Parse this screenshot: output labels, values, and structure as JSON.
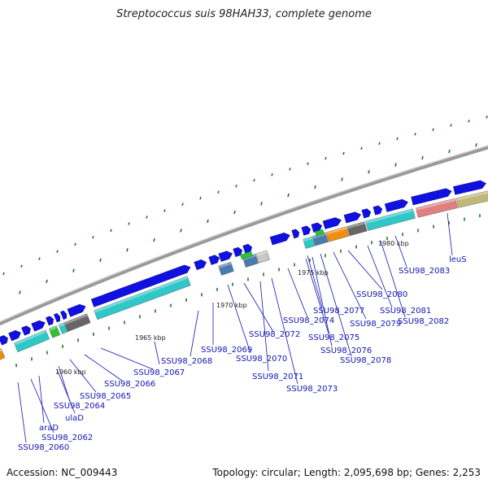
{
  "title": "Streptococcus suis 98HAH33, complete genome",
  "footer": {
    "accession": "Accession: NC_009443",
    "summary": "Topology: circular; Length: 2,095,698 bp; Genes: 2,253"
  },
  "scale_labels": [
    "1960 kbp",
    "1965 kbp",
    "1970 kbp",
    "1975 kbp",
    "1980 kbp"
  ],
  "gene_labels": [
    "SSU98_2060",
    "SSU98_2062",
    "araD",
    "ulaD",
    "SSU98_2064",
    "SSU98_2065",
    "SSU98_2066",
    "SSU98_2067",
    "SSU98_2068",
    "SSU98_2069",
    "SSU98_2070",
    "SSU98_2071",
    "SSU98_2072",
    "SSU98_2073",
    "SSU98_2074",
    "SSU98_2075",
    "SSU98_2076",
    "SSU98_2077",
    "SSU98_2078",
    "SSU98_2079",
    "SSU98_2080",
    "SSU98_2081",
    "SSU98_2082",
    "SSU98_2083",
    "leuS"
  ],
  "colors": {
    "gene_forward": "#1010e0",
    "gene_cyan": "#2fc8c8",
    "gene_orange": "#f08c10",
    "gene_gray": "#666666",
    "gene_pink": "#e08080",
    "gene_khaki": "#c0b878",
    "gene_green": "#30c030",
    "gene_steel": "#4a7ab0",
    "backbone": "#8a8a8a",
    "label": "#1414b4",
    "tick": "#1a7a1a"
  }
}
